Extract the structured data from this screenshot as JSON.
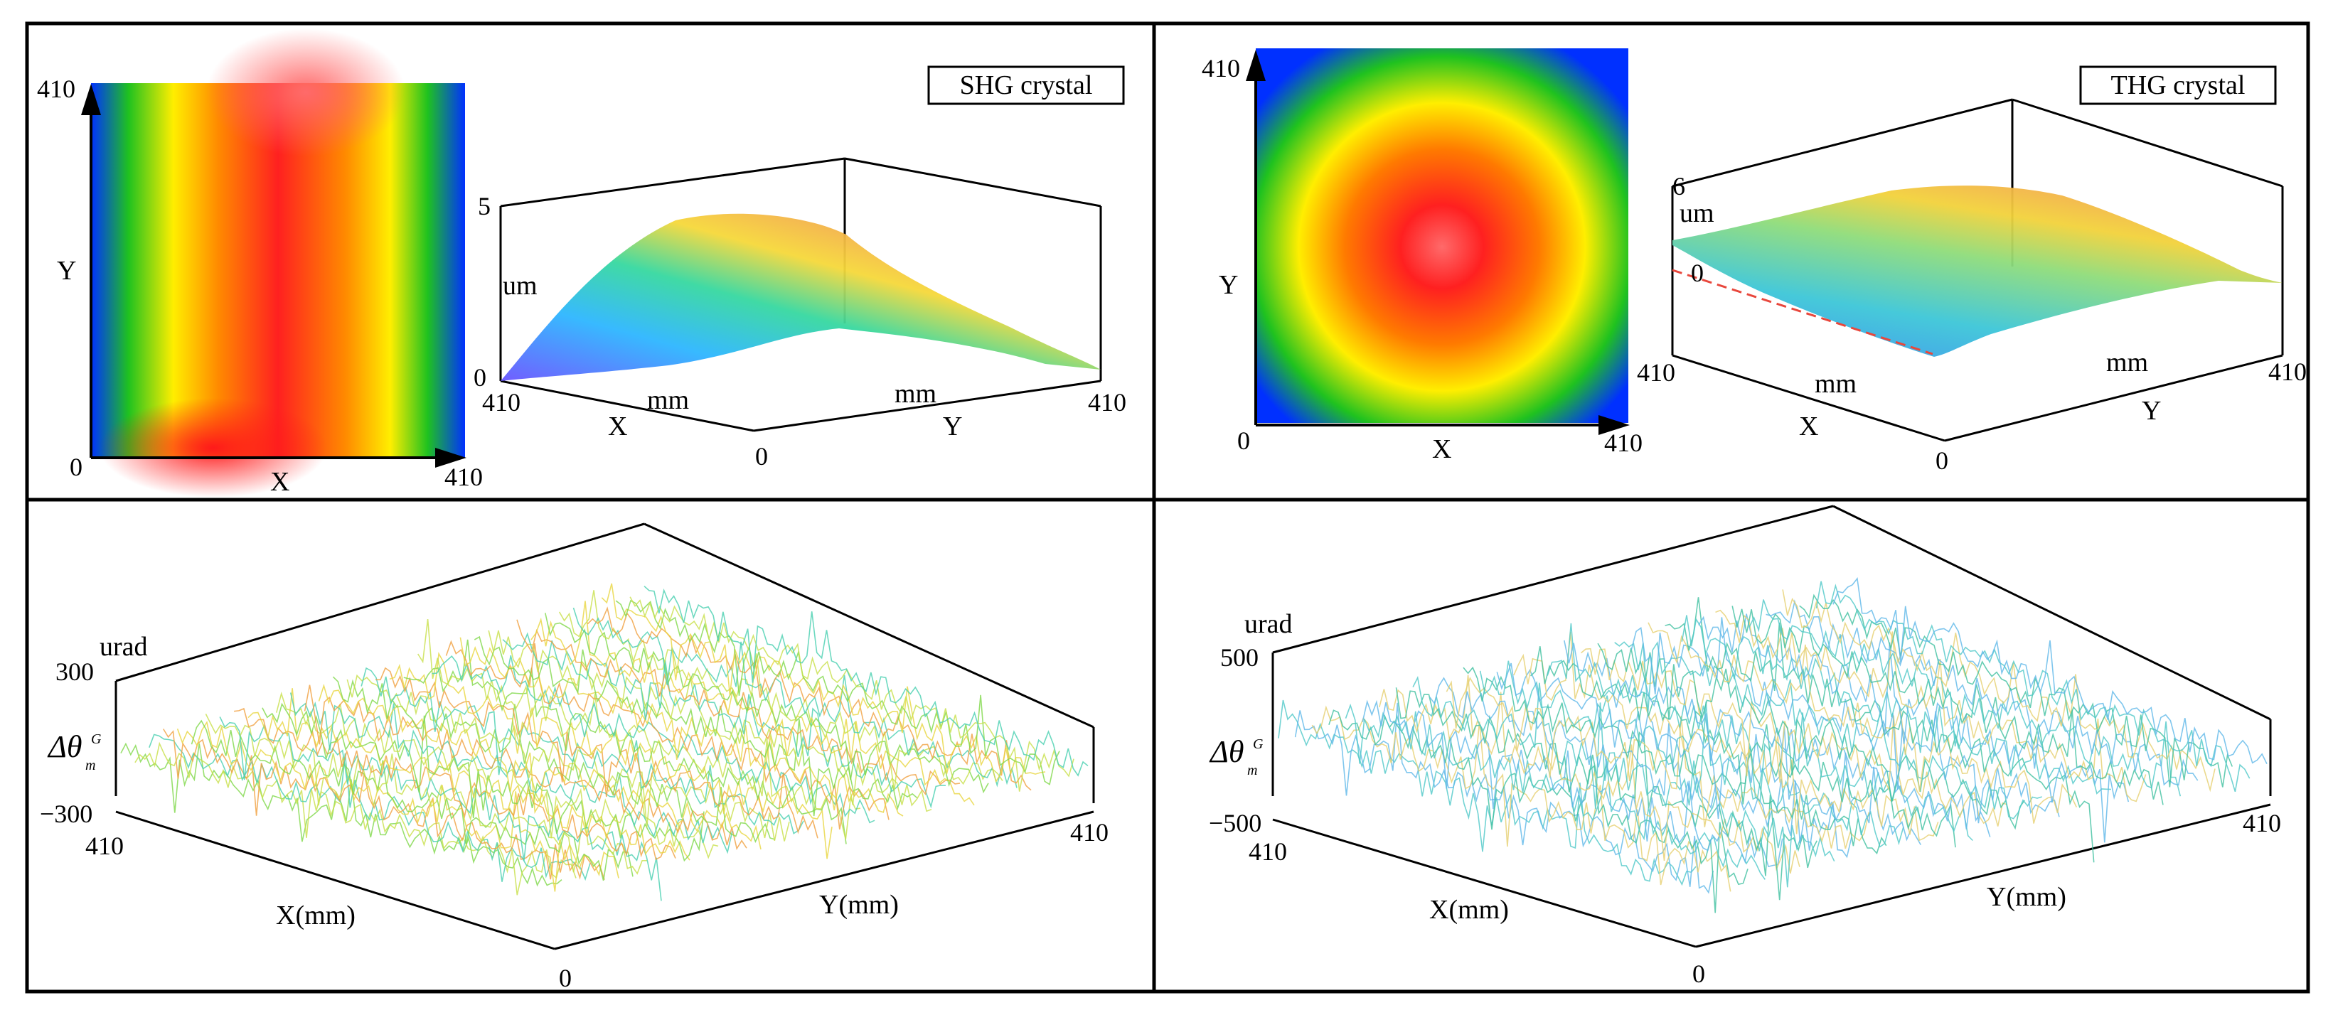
{
  "panels": {
    "shg_map": {
      "title": "SHG crystal",
      "x_axis": {
        "label": "X",
        "min": "0",
        "max": "410"
      },
      "y_axis": {
        "label": "Y",
        "max": "410"
      }
    },
    "shg_surface": {
      "z_label": "um",
      "z_max": "5",
      "z_min": "0",
      "x_label": "X",
      "y_label": "Y",
      "x_unit": "mm",
      "y_unit": "mm",
      "x_max": "410",
      "y_max": "410",
      "origin": "0"
    },
    "thg_map": {
      "title": "THG crystal",
      "x_axis": {
        "label": "X",
        "min": "0",
        "max": "410"
      },
      "y_axis": {
        "label": "Y",
        "max": "410"
      }
    },
    "thg_surface": {
      "z_label": "um",
      "z_max": "6",
      "z_mid": "0",
      "x_label": "X",
      "y_label": "Y",
      "x_unit": "mm",
      "y_unit": "mm",
      "x_max": "410",
      "y_max": "410",
      "origin": "0"
    },
    "shg_angle": {
      "z_label": "urad",
      "z_max": "300",
      "z_min": "−300",
      "symbol": "Δθ",
      "symbol_sup": "G",
      "symbol_sub": "m",
      "x_label": "X(mm)",
      "y_label": "Y(mm)",
      "x_max": "410",
      "y_max": "410",
      "origin": "0"
    },
    "thg_angle": {
      "z_label": "urad",
      "z_max": "500",
      "z_min": "−500",
      "symbol": "Δθ",
      "symbol_sup": "G",
      "symbol_sub": "m",
      "x_label": "X(mm)",
      "y_label": "Y(mm)",
      "x_max": "410",
      "y_max": "410",
      "origin": "0"
    }
  },
  "colors": {
    "frame": "#000000",
    "map_red": "#ff2020",
    "map_orange": "#ff8a00",
    "map_yellow": "#ffee00",
    "map_green": "#1fc21f",
    "map_blue": "#0030ff",
    "map_peak": "#ff6a6a",
    "dashed_line": "#e8473c",
    "shg_wire": "#7fd84a",
    "thg_wire": "#4fc8c8"
  }
}
